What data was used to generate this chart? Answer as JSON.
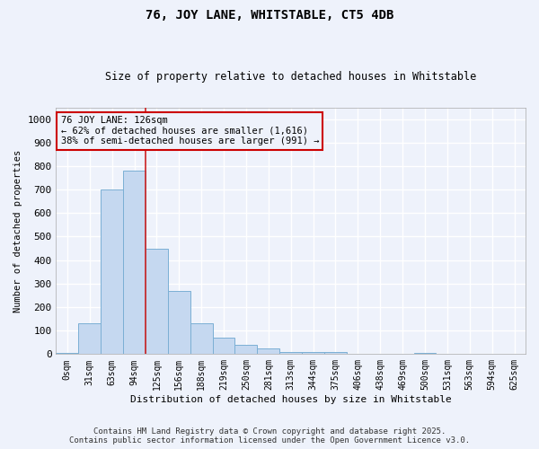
{
  "title": "76, JOY LANE, WHITSTABLE, CT5 4DB",
  "subtitle": "Size of property relative to detached houses in Whitstable",
  "xlabel": "Distribution of detached houses by size in Whitstable",
  "ylabel": "Number of detached properties",
  "bar_color": "#c5d8f0",
  "bar_edge_color": "#7bafd4",
  "background_color": "#eef2fb",
  "grid_color": "#ffffff",
  "annotation_box_color": "#cc0000",
  "vline_color": "#cc2222",
  "vline_x": 3.5,
  "categories": [
    "0sqm",
    "31sqm",
    "63sqm",
    "94sqm",
    "125sqm",
    "156sqm",
    "188sqm",
    "219sqm",
    "250sqm",
    "281sqm",
    "313sqm",
    "344sqm",
    "375sqm",
    "406sqm",
    "438sqm",
    "469sqm",
    "500sqm",
    "531sqm",
    "563sqm",
    "594sqm",
    "625sqm"
  ],
  "values": [
    5,
    130,
    700,
    780,
    450,
    270,
    130,
    70,
    38,
    25,
    10,
    10,
    10,
    0,
    0,
    0,
    5,
    0,
    0,
    0,
    0
  ],
  "ylim": [
    0,
    1050
  ],
  "yticks": [
    0,
    100,
    200,
    300,
    400,
    500,
    600,
    700,
    800,
    900,
    1000
  ],
  "annotation_text": "76 JOY LANE: 126sqm\n← 62% of detached houses are smaller (1,616)\n38% of semi-detached houses are larger (991) →",
  "footer_line1": "Contains HM Land Registry data © Crown copyright and database right 2025.",
  "footer_line2": "Contains public sector information licensed under the Open Government Licence v3.0.",
  "figsize": [
    6.0,
    5.0
  ],
  "dpi": 100
}
